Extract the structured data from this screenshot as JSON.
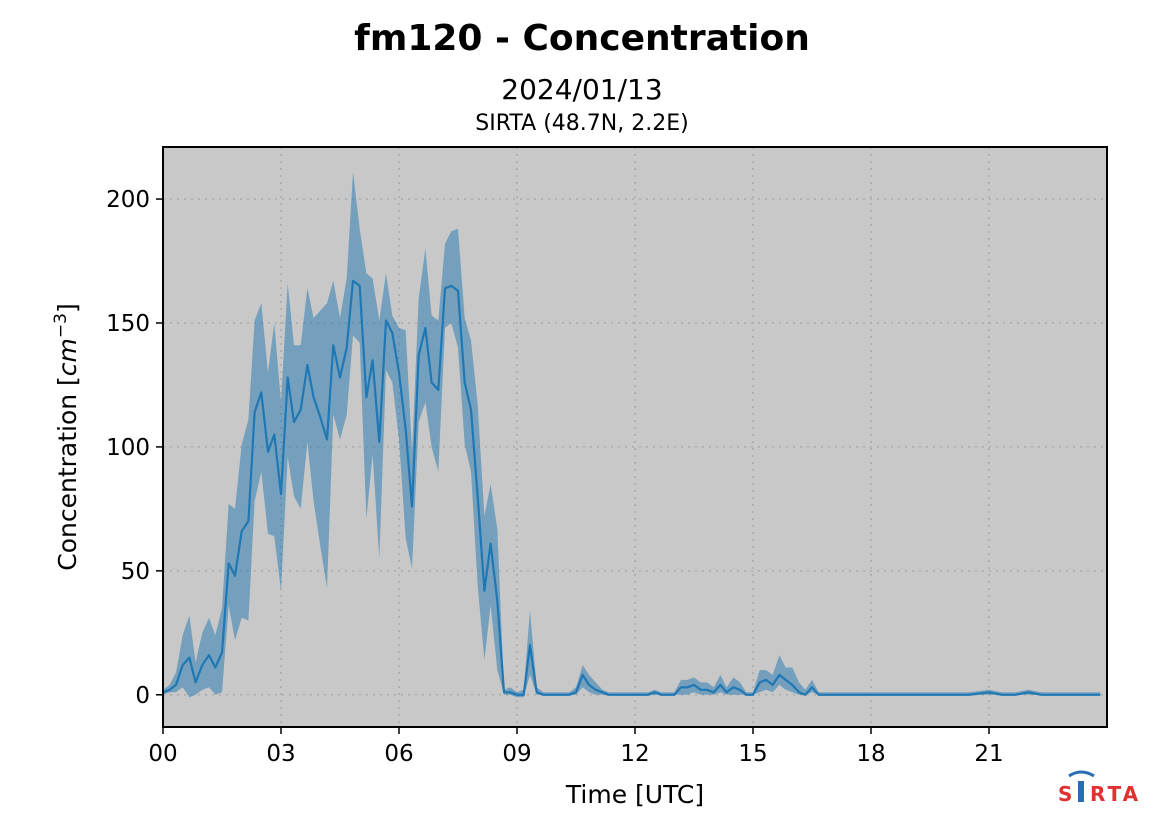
{
  "chart_data": {
    "type": "area",
    "title": "fm120 - Concentration",
    "subtitle": "2024/01/13",
    "location": "SIRTA (48.7N, 2.2E)",
    "xlabel": "Time [UTC]",
    "ylabel_prefix": "Concentration [",
    "ylabel_unit": "cm",
    "ylabel_exp": "−3",
    "ylabel_suffix": "]",
    "xlim": [
      0,
      24
    ],
    "ylim": [
      -13,
      221
    ],
    "xticks": [
      0,
      3,
      6,
      9,
      12,
      15,
      18,
      21
    ],
    "xtick_labels": [
      "00",
      "03",
      "06",
      "09",
      "12",
      "15",
      "18",
      "21"
    ],
    "yticks": [
      0,
      50,
      100,
      150,
      200
    ],
    "ytick_labels": [
      "0",
      "50",
      "100",
      "150",
      "200"
    ],
    "grid": true,
    "colors": {
      "line": "#1f77b4",
      "band": "#1f77b4",
      "background": "#c8c8c8",
      "grid": "#aaaaaa"
    },
    "series": [
      {
        "x": [
          0.0,
          0.17,
          0.33,
          0.5,
          0.67,
          0.83,
          1.0,
          1.17,
          1.33,
          1.5,
          1.67,
          1.83,
          2.0,
          2.17,
          2.33,
          2.5,
          2.67,
          2.83,
          3.0,
          3.17,
          3.33,
          3.5,
          3.67,
          3.83,
          4.0,
          4.17,
          4.33,
          4.5,
          4.67,
          4.83,
          5.0,
          5.17,
          5.33,
          5.5,
          5.67,
          5.83,
          6.0,
          6.17,
          6.33,
          6.5,
          6.67,
          6.83,
          7.0,
          7.17,
          7.33,
          7.5,
          7.67,
          7.83,
          8.0,
          8.17,
          8.33,
          8.5,
          8.67,
          8.83,
          9.0,
          9.17,
          9.33,
          9.5,
          9.67,
          9.83,
          10.0,
          10.17,
          10.33,
          10.5,
          10.67,
          10.83,
          11.0,
          11.17,
          11.33,
          11.5,
          11.67,
          11.83,
          12.0,
          12.17,
          12.33,
          12.5,
          12.67,
          12.83,
          13.0,
          13.17,
          13.33,
          13.5,
          13.67,
          13.83,
          14.0,
          14.17,
          14.33,
          14.5,
          14.67,
          14.83,
          15.0,
          15.17,
          15.33,
          15.5,
          15.67,
          15.83,
          16.0,
          16.17,
          16.33,
          16.5,
          16.67,
          16.83,
          17.0,
          17.33,
          17.67,
          18.0,
          18.5,
          19.0,
          19.5,
          20.0,
          20.5,
          21.0,
          21.33,
          21.5,
          21.67,
          22.0,
          22.33,
          22.67,
          23.0,
          23.33,
          23.67,
          23.83
        ],
        "y": [
          1,
          2,
          4,
          12,
          15,
          5,
          12,
          16,
          11,
          17,
          53,
          48,
          66,
          70,
          114,
          122,
          98,
          105,
          81,
          128,
          110,
          115,
          133,
          120,
          112,
          103,
          141,
          128,
          140,
          167,
          165,
          120,
          135,
          102,
          151,
          146,
          130,
          107,
          76,
          137,
          148,
          126,
          123,
          164,
          165,
          163,
          126,
          115,
          80,
          42,
          61,
          38,
          1,
          1,
          0,
          0,
          20,
          1,
          0,
          0,
          0,
          0,
          0,
          1,
          8,
          4,
          2,
          1,
          0,
          0,
          0,
          0,
          0,
          0,
          0,
          1,
          0,
          0,
          0,
          3,
          3,
          4,
          2,
          2,
          1,
          4,
          1,
          3,
          2,
          0,
          0,
          5,
          6,
          4,
          8,
          6,
          4,
          1,
          0,
          3,
          0,
          0,
          0,
          0,
          0,
          0,
          0,
          0,
          0,
          0,
          0,
          1,
          0,
          0,
          0,
          1,
          0,
          0,
          0,
          0,
          0,
          0
        ],
        "lower": [
          0,
          1,
          1,
          3,
          -1,
          0,
          2,
          3,
          0,
          1,
          36,
          22,
          31,
          30,
          78,
          90,
          65,
          64,
          42,
          96,
          80,
          75,
          102,
          78,
          60,
          43,
          113,
          103,
          113,
          145,
          142,
          71,
          97,
          55,
          131,
          126,
          103,
          63,
          51,
          110,
          118,
          100,
          90,
          148,
          150,
          140,
          101,
          90,
          44,
          14,
          36,
          10,
          0,
          0,
          -1,
          -1,
          8,
          0,
          0,
          0,
          0,
          0,
          0,
          0,
          3,
          1,
          0,
          0,
          0,
          0,
          0,
          0,
          0,
          0,
          0,
          0,
          0,
          0,
          0,
          0,
          0,
          1,
          0,
          0,
          0,
          1,
          0,
          0,
          0,
          0,
          0,
          1,
          2,
          1,
          4,
          2,
          1,
          0,
          0,
          1,
          0,
          0,
          0,
          0,
          0,
          0,
          0,
          0,
          0,
          0,
          0,
          0,
          0,
          0,
          0,
          0,
          0,
          0,
          0,
          0,
          0,
          0
        ],
        "upper": [
          2,
          4,
          9,
          24,
          32,
          13,
          25,
          31,
          24,
          35,
          77,
          75,
          101,
          111,
          151,
          158,
          130,
          150,
          118,
          166,
          141,
          141,
          164,
          152,
          155,
          158,
          167,
          152,
          168,
          211,
          188,
          170,
          168,
          151,
          170,
          153,
          148,
          147,
          98,
          160,
          180,
          153,
          151,
          182,
          187,
          188,
          152,
          143,
          117,
          72,
          85,
          67,
          2,
          3,
          1,
          2,
          34,
          3,
          1,
          1,
          1,
          1,
          1,
          3,
          12,
          8,
          5,
          2,
          1,
          1,
          1,
          1,
          1,
          1,
          1,
          2,
          1,
          1,
          1,
          6,
          6,
          7,
          5,
          5,
          3,
          8,
          3,
          7,
          5,
          1,
          1,
          10,
          10,
          8,
          16,
          11,
          11,
          5,
          2,
          6,
          1,
          1,
          1,
          1,
          1,
          1,
          1,
          1,
          1,
          1,
          1,
          2,
          1,
          1,
          1,
          2,
          1,
          1,
          1,
          1,
          1,
          1
        ]
      }
    ]
  },
  "logo": {
    "text_left": "S",
    "text_right": "RTA"
  }
}
